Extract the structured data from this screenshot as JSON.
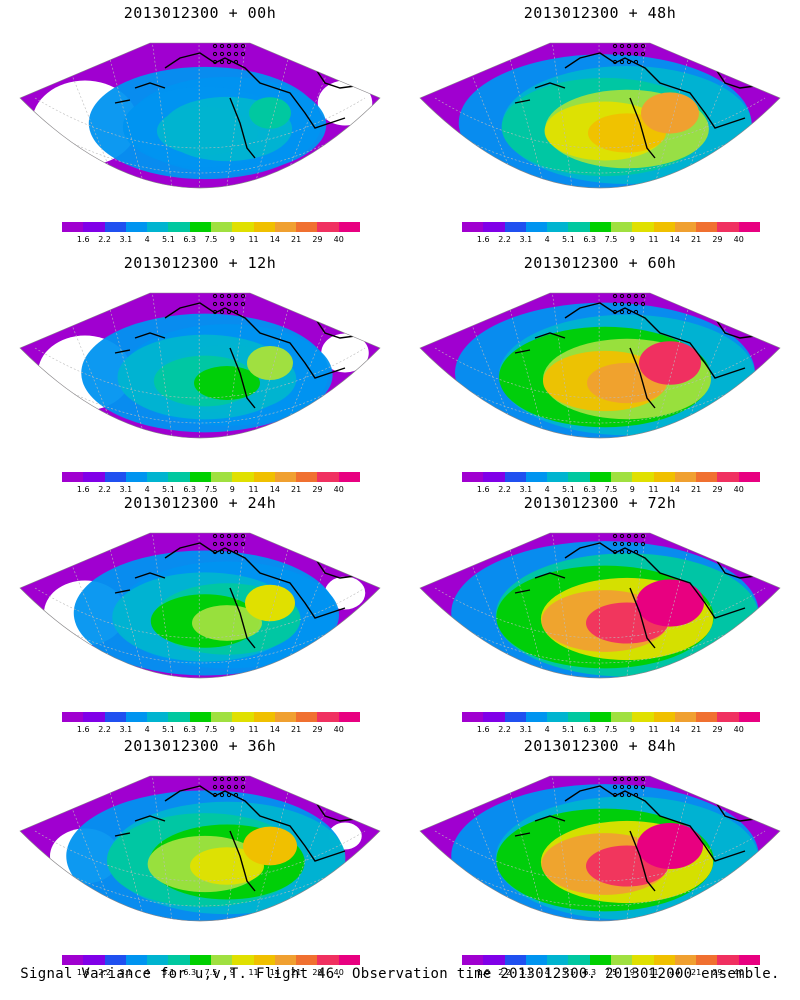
{
  "panels": [
    {
      "title": "2013012300 + 00h",
      "intensity": 0.15,
      "coverage": 0.45
    },
    {
      "title": "2013012300 + 48h",
      "intensity": 0.55,
      "coverage": 0.85
    },
    {
      "title": "2013012300 + 12h",
      "intensity": 0.25,
      "coverage": 0.55
    },
    {
      "title": "2013012300 + 60h",
      "intensity": 0.65,
      "coverage": 0.9
    },
    {
      "title": "2013012300 + 24h",
      "intensity": 0.35,
      "coverage": 0.65
    },
    {
      "title": "2013012300 + 72h",
      "intensity": 0.8,
      "coverage": 0.95
    },
    {
      "title": "2013012300 + 36h",
      "intensity": 0.45,
      "coverage": 0.75
    },
    {
      "title": "2013012300 + 84h",
      "intensity": 0.75,
      "coverage": 0.95
    }
  ],
  "colorbar": {
    "labels": [
      "1.6",
      "2.2",
      "3.1",
      "4",
      "5.1",
      "6.3",
      "7.5",
      "9",
      "11",
      "14",
      "21",
      "29",
      "40"
    ],
    "colors": [
      "#a000d0",
      "#8000e8",
      "#2050f0",
      "#0094f0",
      "#00b4d0",
      "#00c8a0",
      "#00d000",
      "#a0e040",
      "#e0e000",
      "#f0c000",
      "#f0a030",
      "#f07030",
      "#f03060",
      "#e80080"
    ]
  },
  "footer": "Signal Variance for u,v,T. Flight 46. Observation time 2013012300. 2013012000 ensemble."
}
